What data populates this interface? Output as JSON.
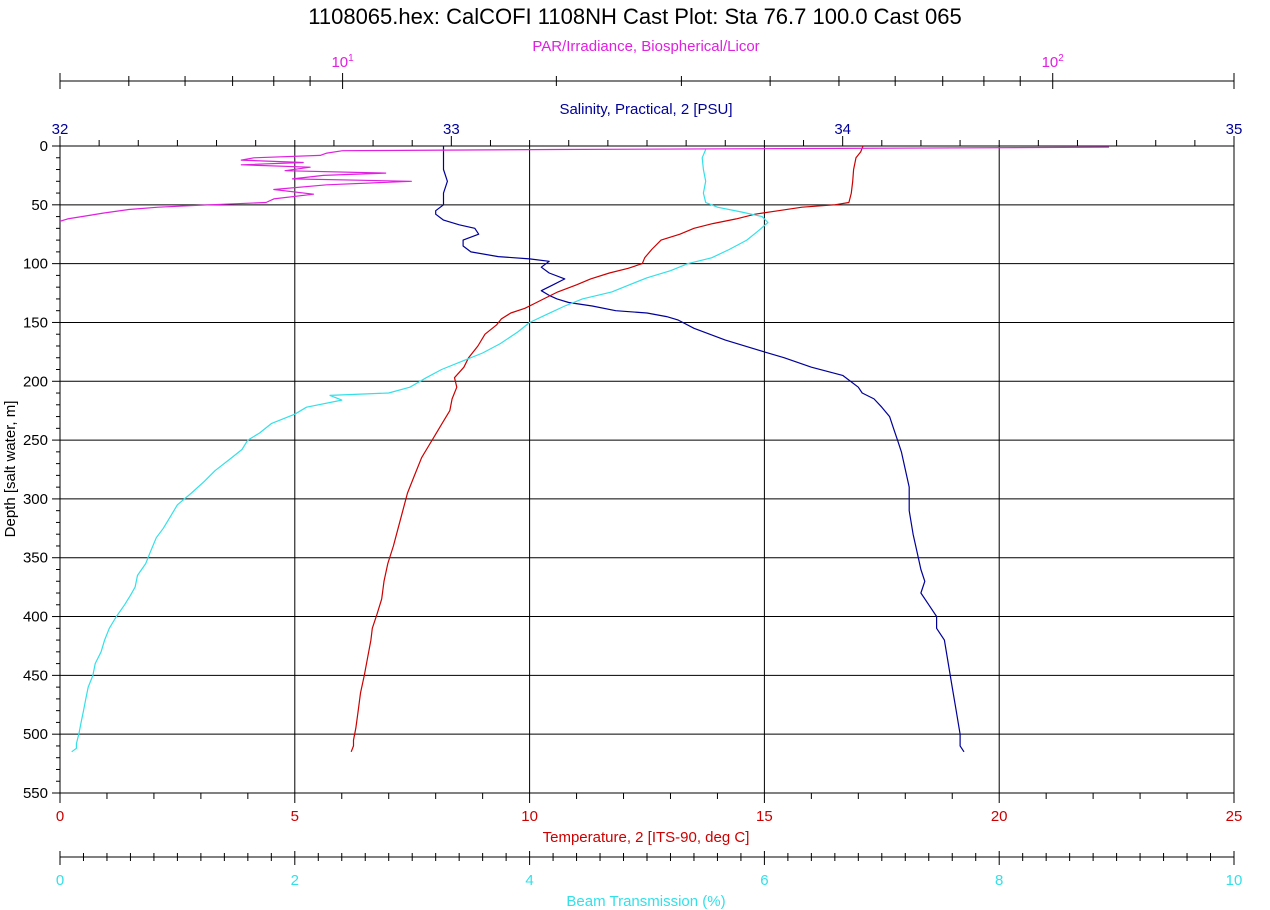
{
  "chart_data": {
    "type": "line",
    "title": "1108065.hex: CalCOFI 1108NH Cast Plot: Sta 76.7 100.0 Cast 065",
    "ylabel": "Depth [salt water, m]",
    "y_axis": {
      "ylim": [
        0,
        550
      ],
      "inverted": true,
      "ticks": [
        0,
        50,
        100,
        150,
        200,
        250,
        300,
        350,
        400,
        450,
        500,
        550
      ]
    },
    "grid": true,
    "axes": {
      "par": {
        "label": "PAR/Irradiance, Biospherical/Licor",
        "scale": "log",
        "xlim": [
          4,
          180
        ],
        "tick_labels": [
          {
            "value": 10,
            "base": "10",
            "exp": "1"
          },
          {
            "value": 100,
            "base": "10",
            "exp": "2"
          }
        ],
        "color": "#e020e0"
      },
      "salinity": {
        "label": "Salinity, Practical, 2 [PSU]",
        "xlim": [
          32,
          35
        ],
        "ticks": [
          32,
          33,
          34,
          35
        ],
        "color": "#000099"
      },
      "temperature": {
        "label": "Temperature, 2 [ITS-90, deg C]",
        "xlim": [
          0,
          25
        ],
        "ticks": [
          0,
          5,
          10,
          15,
          20,
          25
        ],
        "color": "#cc0000"
      },
      "beam": {
        "label": "Beam Transmission (%)",
        "xlim": [
          0,
          10
        ],
        "ticks": [
          0,
          2,
          4,
          6,
          8,
          10
        ],
        "color": "#33e0e8"
      }
    },
    "series": [
      {
        "name": "Salinity, Practical, 2 [PSU]",
        "axis": "salinity",
        "color": "#000099",
        "points": [
          [
            32.98,
            0
          ],
          [
            32.98,
            10
          ],
          [
            32.98,
            20
          ],
          [
            32.99,
            30
          ],
          [
            32.98,
            40
          ],
          [
            32.98,
            50
          ],
          [
            32.96,
            55
          ],
          [
            32.96,
            58
          ],
          [
            32.98,
            63
          ],
          [
            33.02,
            67
          ],
          [
            33.06,
            70
          ],
          [
            33.07,
            75
          ],
          [
            33.03,
            80
          ],
          [
            33.03,
            85
          ],
          [
            33.05,
            90
          ],
          [
            33.12,
            94
          ],
          [
            33.2,
            96
          ],
          [
            33.25,
            98
          ],
          [
            33.23,
            103
          ],
          [
            33.25,
            108
          ],
          [
            33.29,
            113
          ],
          [
            33.26,
            118
          ],
          [
            33.23,
            123
          ],
          [
            33.25,
            127
          ],
          [
            33.27,
            130
          ],
          [
            33.3,
            133
          ],
          [
            33.36,
            136
          ],
          [
            33.42,
            140
          ],
          [
            33.5,
            142
          ],
          [
            33.55,
            145
          ],
          [
            33.58,
            148
          ],
          [
            33.62,
            155
          ],
          [
            33.7,
            165
          ],
          [
            33.8,
            175
          ],
          [
            33.85,
            180
          ],
          [
            33.92,
            188
          ],
          [
            34.0,
            195
          ],
          [
            34.04,
            205
          ],
          [
            34.05,
            210
          ],
          [
            34.08,
            215
          ],
          [
            34.1,
            222
          ],
          [
            34.12,
            230
          ],
          [
            34.13,
            240
          ],
          [
            34.14,
            250
          ],
          [
            34.15,
            260
          ],
          [
            34.16,
            275
          ],
          [
            34.17,
            290
          ],
          [
            34.17,
            310
          ],
          [
            34.18,
            330
          ],
          [
            34.19,
            345
          ],
          [
            34.2,
            360
          ],
          [
            34.21,
            370
          ],
          [
            34.2,
            380
          ],
          [
            34.22,
            390
          ],
          [
            34.24,
            400
          ],
          [
            34.24,
            410
          ],
          [
            34.26,
            420
          ],
          [
            34.27,
            440
          ],
          [
            34.28,
            460
          ],
          [
            34.29,
            480
          ],
          [
            34.3,
            500
          ],
          [
            34.3,
            510
          ],
          [
            34.31,
            515
          ]
        ]
      },
      {
        "name": "Temperature, 2 [ITS-90, deg C]",
        "axis": "temperature",
        "color": "#cc0000",
        "points": [
          [
            17.1,
            0
          ],
          [
            17.05,
            5
          ],
          [
            16.95,
            10
          ],
          [
            16.9,
            20
          ],
          [
            16.88,
            30
          ],
          [
            16.85,
            40
          ],
          [
            16.8,
            48
          ],
          [
            16.5,
            50
          ],
          [
            15.8,
            52
          ],
          [
            15.3,
            55
          ],
          [
            14.8,
            58
          ],
          [
            14.4,
            62
          ],
          [
            13.9,
            66
          ],
          [
            13.5,
            70
          ],
          [
            13.2,
            75
          ],
          [
            12.8,
            80
          ],
          [
            12.6,
            88
          ],
          [
            12.45,
            95
          ],
          [
            12.4,
            100
          ],
          [
            12.1,
            104
          ],
          [
            11.7,
            108
          ],
          [
            11.3,
            113
          ],
          [
            11.0,
            118
          ],
          [
            10.6,
            124
          ],
          [
            10.3,
            130
          ],
          [
            10.1,
            134
          ],
          [
            9.9,
            138
          ],
          [
            9.6,
            142
          ],
          [
            9.4,
            147
          ],
          [
            9.3,
            152
          ],
          [
            9.05,
            160
          ],
          [
            8.9,
            170
          ],
          [
            8.7,
            180
          ],
          [
            8.6,
            188
          ],
          [
            8.4,
            197
          ],
          [
            8.45,
            205
          ],
          [
            8.35,
            215
          ],
          [
            8.3,
            225
          ],
          [
            8.15,
            235
          ],
          [
            8.0,
            245
          ],
          [
            7.85,
            255
          ],
          [
            7.7,
            265
          ],
          [
            7.55,
            280
          ],
          [
            7.4,
            295
          ],
          [
            7.3,
            310
          ],
          [
            7.2,
            325
          ],
          [
            7.1,
            340
          ],
          [
            6.98,
            355
          ],
          [
            6.9,
            370
          ],
          [
            6.85,
            385
          ],
          [
            6.75,
            398
          ],
          [
            6.65,
            410
          ],
          [
            6.62,
            420
          ],
          [
            6.55,
            435
          ],
          [
            6.48,
            450
          ],
          [
            6.4,
            465
          ],
          [
            6.35,
            480
          ],
          [
            6.3,
            495
          ],
          [
            6.25,
            505
          ],
          [
            6.25,
            510
          ],
          [
            6.2,
            515
          ]
        ]
      },
      {
        "name": "Beam Transmission (%)",
        "axis": "beam",
        "color": "#33e0e8",
        "points": [
          [
            5.5,
            3
          ],
          [
            5.47,
            10
          ],
          [
            5.48,
            20
          ],
          [
            5.5,
            30
          ],
          [
            5.48,
            40
          ],
          [
            5.5,
            48
          ],
          [
            5.6,
            52
          ],
          [
            5.8,
            56
          ],
          [
            5.98,
            60
          ],
          [
            6.03,
            65
          ],
          [
            5.95,
            72
          ],
          [
            5.85,
            80
          ],
          [
            5.7,
            88
          ],
          [
            5.55,
            95
          ],
          [
            5.35,
            100
          ],
          [
            5.2,
            106
          ],
          [
            5.0,
            112
          ],
          [
            4.85,
            118
          ],
          [
            4.7,
            124
          ],
          [
            4.45,
            130
          ],
          [
            4.3,
            136
          ],
          [
            4.15,
            143
          ],
          [
            4.0,
            150
          ],
          [
            3.9,
            158
          ],
          [
            3.75,
            168
          ],
          [
            3.6,
            176
          ],
          [
            3.45,
            182
          ],
          [
            3.25,
            190
          ],
          [
            3.12,
            197
          ],
          [
            2.98,
            205
          ],
          [
            2.8,
            210
          ],
          [
            2.3,
            212
          ],
          [
            2.4,
            216
          ],
          [
            2.1,
            222
          ],
          [
            2.0,
            228
          ],
          [
            1.8,
            236
          ],
          [
            1.7,
            244
          ],
          [
            1.6,
            250
          ],
          [
            1.55,
            258
          ],
          [
            1.45,
            266
          ],
          [
            1.32,
            276
          ],
          [
            1.23,
            285
          ],
          [
            1.12,
            295
          ],
          [
            1.0,
            305
          ],
          [
            0.94,
            315
          ],
          [
            0.88,
            325
          ],
          [
            0.82,
            333
          ],
          [
            0.77,
            345
          ],
          [
            0.73,
            355
          ],
          [
            0.66,
            365
          ],
          [
            0.64,
            375
          ],
          [
            0.6,
            382
          ],
          [
            0.55,
            390
          ],
          [
            0.48,
            400
          ],
          [
            0.42,
            410
          ],
          [
            0.38,
            420
          ],
          [
            0.35,
            430
          ],
          [
            0.3,
            440
          ],
          [
            0.28,
            450
          ],
          [
            0.24,
            460
          ],
          [
            0.22,
            470
          ],
          [
            0.2,
            480
          ],
          [
            0.18,
            490
          ],
          [
            0.16,
            500
          ],
          [
            0.14,
            508
          ],
          [
            0.14,
            512
          ],
          [
            0.1,
            515
          ]
        ]
      },
      {
        "name": "PAR/Irradiance, Biospherical/Licor",
        "axis": "par",
        "color": "#e020e0",
        "points": [
          [
            120,
            1
          ],
          [
            50,
            2
          ],
          [
            20,
            3
          ],
          [
            10,
            4
          ],
          [
            9.5,
            6
          ],
          [
            9.3,
            8
          ],
          [
            7.5,
            10
          ],
          [
            7.2,
            12
          ],
          [
            8.8,
            14
          ],
          [
            7.2,
            16
          ],
          [
            9.0,
            18
          ],
          [
            8.3,
            21
          ],
          [
            11.5,
            23
          ],
          [
            9.4,
            25
          ],
          [
            8.5,
            28
          ],
          [
            12.5,
            30
          ],
          [
            9.5,
            33
          ],
          [
            8.0,
            37
          ],
          [
            9.1,
            41
          ],
          [
            8.0,
            45
          ],
          [
            7.8,
            48
          ],
          [
            6.5,
            50
          ],
          [
            5.5,
            52
          ],
          [
            5.0,
            54
          ],
          [
            4.6,
            57
          ],
          [
            4.4,
            59
          ],
          [
            4.1,
            62
          ],
          [
            4.0,
            64
          ]
        ]
      }
    ]
  }
}
